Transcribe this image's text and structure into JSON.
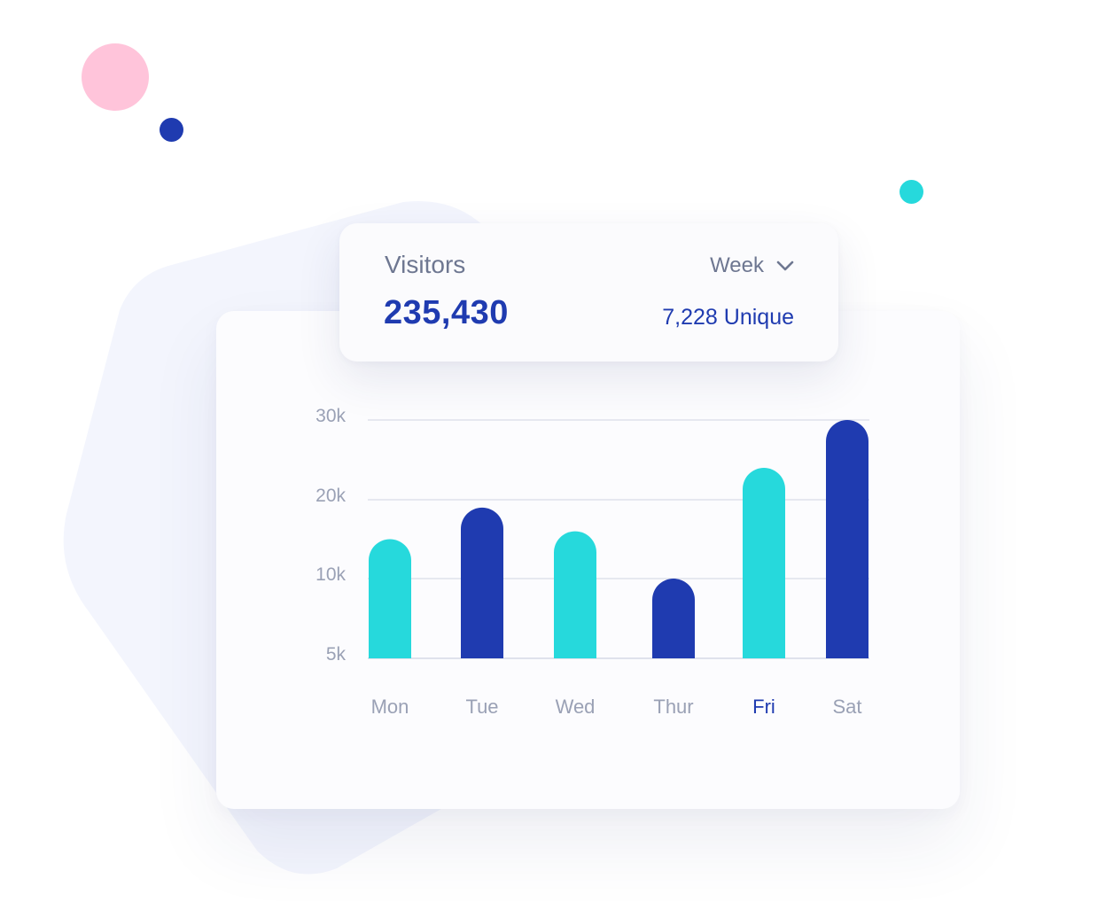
{
  "colors": {
    "navy": "#1f3bb0",
    "teal": "#26d9dc",
    "pink": "#ffc4da",
    "muted_text": "#6e7791",
    "axis_text": "#9aa1b5",
    "grid": "#dfe2ec",
    "blob": "#f3f5fd"
  },
  "decorations": {
    "dots": [
      "pink-dot",
      "navy-dot",
      "teal-dot"
    ]
  },
  "stats": {
    "title": "Visitors",
    "total": "235,430",
    "unique": "7,228 Unique",
    "period": {
      "selected": "Week",
      "icon": "chevron-down-icon"
    }
  },
  "chart_data": {
    "type": "bar",
    "categories": [
      "Mon",
      "Tue",
      "Wed",
      "Thur",
      "Fri",
      "Sat"
    ],
    "values": [
      15000,
      19000,
      16000,
      10000,
      24000,
      30000
    ],
    "bar_colors": [
      "#26d9dc",
      "#1f3bb0",
      "#26d9dc",
      "#1f3bb0",
      "#26d9dc",
      "#1f3bb0"
    ],
    "highlighted_category": "Fri",
    "highlight_color": "#1f3bb0",
    "yticks": [
      5000,
      10000,
      20000,
      30000
    ],
    "ytick_labels": [
      "5k",
      "10k",
      "20k",
      "30k"
    ],
    "ylim": [
      0,
      30000
    ],
    "grid": true,
    "title": "",
    "xlabel": "",
    "ylabel": ""
  }
}
